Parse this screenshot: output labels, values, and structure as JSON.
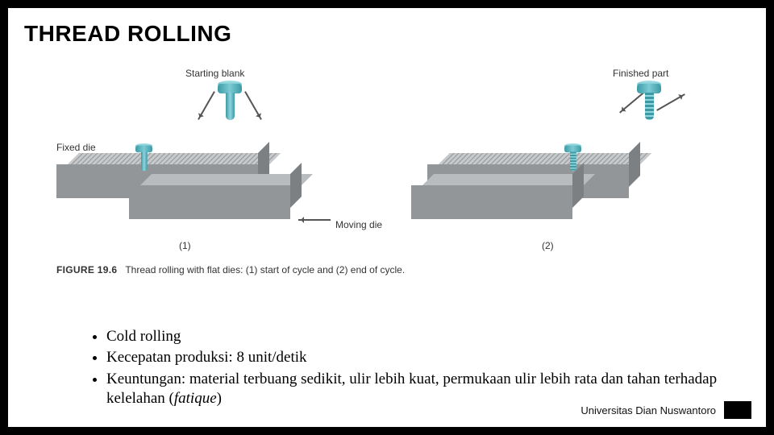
{
  "title": "THREAD ROLLING",
  "figure": {
    "labels": {
      "starting_blank": "Starting blank",
      "finished_part": "Finished part",
      "fixed_die": "Fixed die",
      "moving_die": "Moving die",
      "num1": "(1)",
      "num2": "(2)"
    },
    "caption_bold": "FIGURE 19.6",
    "caption_text": "Thread rolling with flat dies: (1) start of cycle and (2) end of cycle.",
    "colors": {
      "die_front": "#939699",
      "die_top": "#b9bcbf",
      "die_side": "#7d8083",
      "part_light": "#8fd6de",
      "part_dark": "#3c9aa5"
    }
  },
  "bullets": {
    "b1": "Cold rolling",
    "b2": "Kecepatan produksi: 8 unit/detik",
    "b3_pre": "Keuntungan: material terbuang sedikit, ulir lebih kuat, permukaan ulir lebih rata dan tahan terhadap kelelahan (",
    "b3_em": "fatique",
    "b3_post": ")"
  },
  "footer": "Universitas Dian Nuswantoro"
}
